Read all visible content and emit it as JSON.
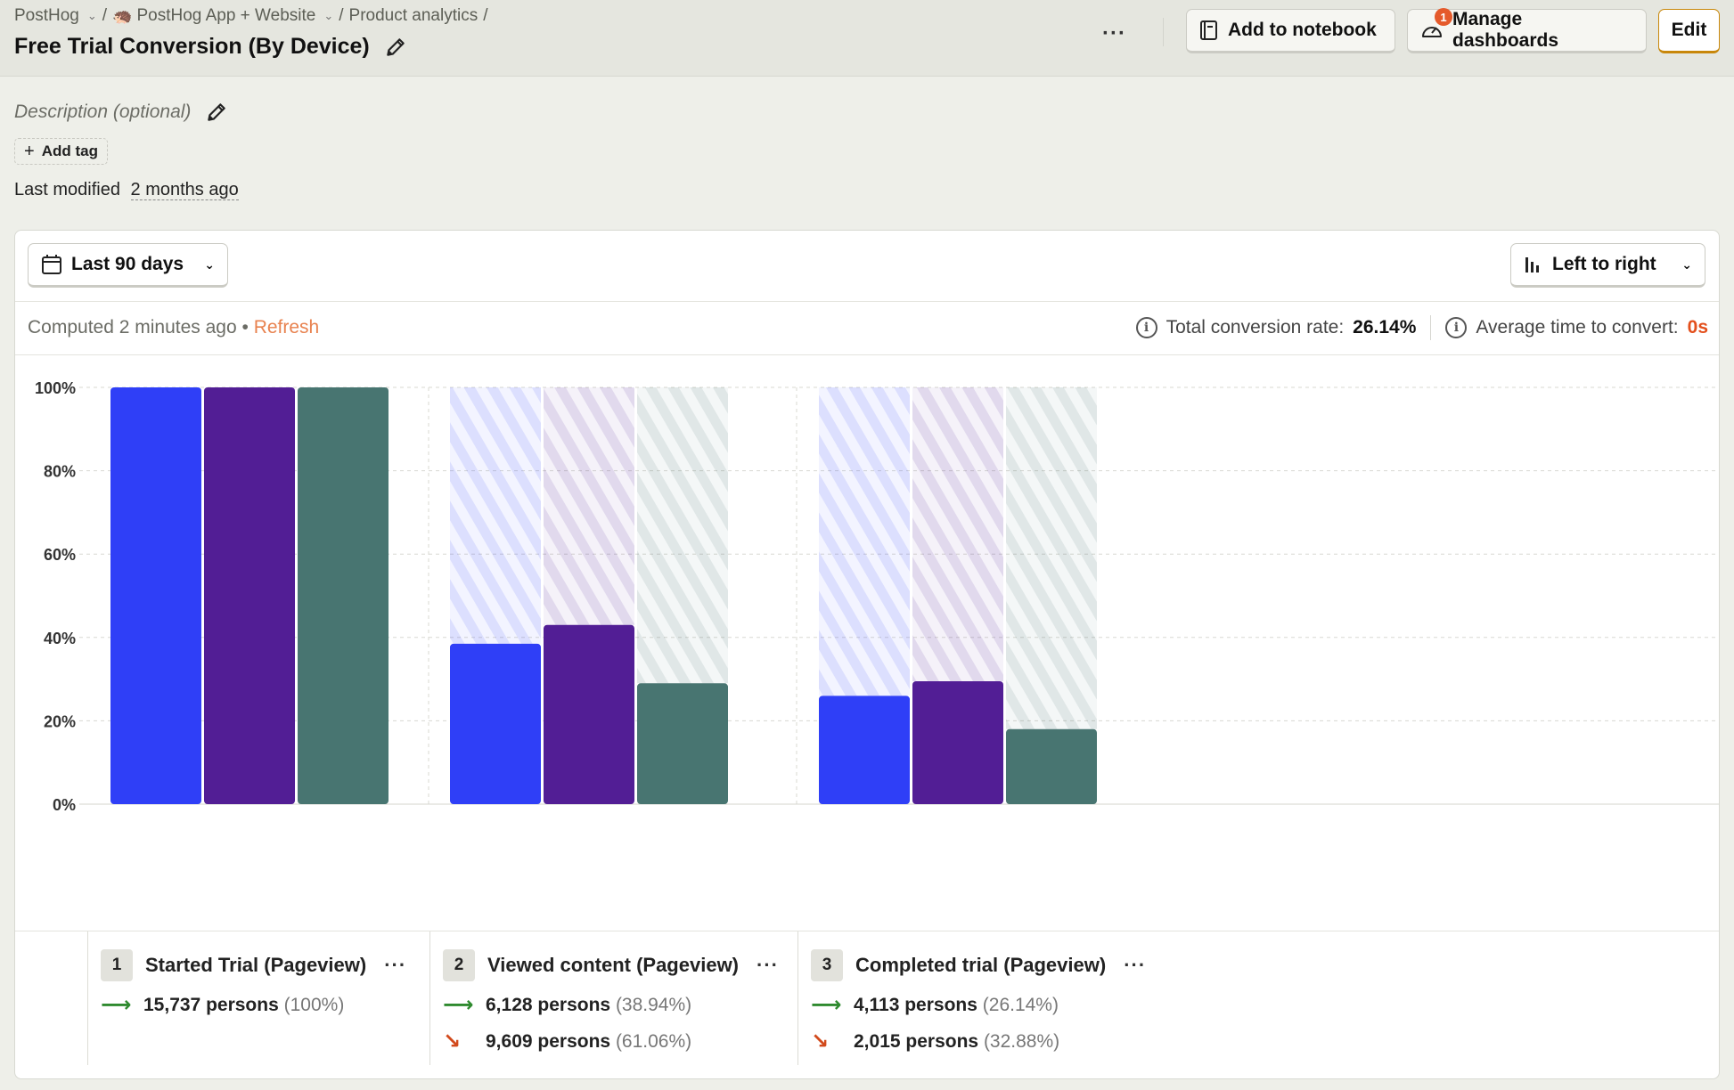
{
  "breadcrumbs": [
    {
      "label": "PostHog",
      "has_dropdown": true
    },
    {
      "label": "PostHog App + Website",
      "has_dropdown": true,
      "icon": "hedgehog-icon"
    },
    {
      "label": "Product analytics",
      "has_dropdown": false
    }
  ],
  "insight": {
    "title": "Free Trial Conversion (By Device)",
    "description_placeholder": "Description (optional)",
    "add_tag_label": "Add tag",
    "last_modified_label": "Last modified",
    "last_modified_value": "2 months ago"
  },
  "toolbar": {
    "more_label": "···",
    "add_to_notebook_label": "Add to notebook",
    "manage_dashboards_label": "Manage dashboards",
    "manage_dashboards_badge": "1",
    "edit_label": "Edit"
  },
  "filters": {
    "date_range": "Last 90 days",
    "layout": "Left to right"
  },
  "status": {
    "computed_label": "Computed 2 minutes ago",
    "separator": "•",
    "refresh_label": "Refresh",
    "total_conversion_label": "Total conversion rate:",
    "total_conversion_value": "26.14%",
    "avg_time_label": "Average time to convert:",
    "avg_time_value": "0s"
  },
  "chart_data": {
    "type": "bar",
    "categories": [
      "Started Trial (Pageview)",
      "Viewed content (Pageview)",
      "Completed trial (Pageview)"
    ],
    "series": [
      {
        "color": "#2f3ff7",
        "values": [
          100,
          38.5,
          26
        ]
      },
      {
        "color": "#521e95",
        "values": [
          100,
          43,
          29.5
        ]
      },
      {
        "color": "#487571",
        "values": [
          100,
          29,
          18
        ]
      }
    ],
    "ylim": [
      0,
      100
    ],
    "yticks": [
      "0%",
      "20%",
      "40%",
      "60%",
      "80%",
      "100%"
    ],
    "grid": true
  },
  "legend_steps": [
    {
      "num": "1",
      "name": "Started Trial (Pageview)",
      "converted": "15,737 persons",
      "converted_pct": "(100%)"
    },
    {
      "num": "2",
      "name": "Viewed content (Pageview)",
      "converted": "6,128 persons",
      "converted_pct": "(38.94%)",
      "dropped": "9,609 persons",
      "dropped_pct": "(61.06%)"
    },
    {
      "num": "3",
      "name": "Completed trial (Pageview)",
      "converted": "4,113 persons",
      "converted_pct": "(26.14%)",
      "dropped": "2,015 persons",
      "dropped_pct": "(32.88%)"
    }
  ]
}
